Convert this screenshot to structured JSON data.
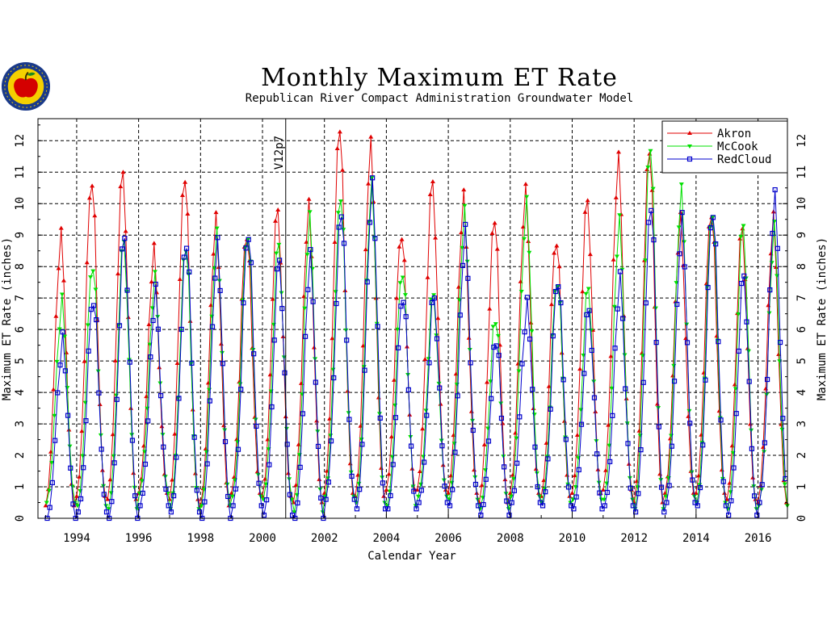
{
  "chart_data": {
    "type": "line",
    "title": "Monthly Maximum ET Rate",
    "subtitle": "Republican River Compact Administration Groundwater Model",
    "xlabel": "Calendar Year",
    "ylabel": "Maximum ET Rate (inches)",
    "xlim": [
      1992.75,
      2016.95
    ],
    "ylim": [
      0,
      12.7
    ],
    "x_ticks": [
      1994,
      1996,
      1998,
      2000,
      2002,
      2004,
      2006,
      2008,
      2010,
      2012,
      2014,
      2016
    ],
    "x_tick_labels": [
      "1994",
      "1996",
      "1998",
      "2000",
      "2002",
      "2004",
      "2006",
      "2008",
      "2010",
      "2012",
      "2014",
      "2016"
    ],
    "y_ticks": [
      0,
      1,
      2,
      3,
      4,
      5,
      6,
      7,
      8,
      9,
      10,
      11,
      12
    ],
    "y_tick_labels": [
      "0",
      "1",
      "2",
      "3",
      "4",
      "5",
      "6",
      "7",
      "8",
      "9",
      "10",
      "11",
      "12"
    ],
    "grid": true,
    "legend_position": "top-right",
    "annotation": {
      "text": "V12p7",
      "x": 2000.75
    },
    "series": [
      {
        "name": "Akron",
        "color": "#e00000",
        "marker": "triangle-up",
        "peaks": [
          9.0,
          11.0,
          11.0,
          8.3,
          10.9,
          9.5,
          9.3,
          9.8,
          9.7,
          12.5,
          11.9,
          9.3,
          10.7,
          10.0,
          9.6,
          10.4,
          9.1,
          10.1,
          11.2,
          11.8,
          9.5,
          10.0,
          9.2,
          9.3
        ],
        "lows": [
          0.4,
          0.7,
          0.6,
          0.8,
          0.6,
          0.4,
          0.8,
          0.7,
          0.5,
          0.8,
          0.7,
          0.9,
          0.9,
          0.8,
          0.5,
          0.8,
          0.7,
          0.8,
          0.9,
          0.5,
          0.8,
          0.8,
          0.6,
          0.5
        ]
      },
      {
        "name": "McCook",
        "color": "#00e000",
        "marker": "triangle-down",
        "peaks": [
          6.9,
          8.3,
          8.8,
          7.4,
          8.7,
          9.0,
          9.3,
          8.7,
          9.3,
          10.3,
          10.6,
          8.1,
          7.1,
          9.5,
          6.4,
          10.0,
          7.8,
          7.3,
          9.2,
          11.9,
          10.4,
          10.0,
          9.3,
          9.0
        ],
        "lows": [
          0.5,
          0.4,
          0.3,
          0.8,
          0.3,
          0.4,
          0.7,
          0.6,
          0.2,
          0.7,
          0.5,
          0.4,
          0.7,
          0.6,
          0.3,
          0.7,
          0.5,
          0.6,
          0.6,
          0.3,
          0.7,
          0.5,
          0.3,
          0.4
        ]
      },
      {
        "name": "RedCloud",
        "color": "#0000cc",
        "marker": "square",
        "peaks": [
          5.7,
          7.2,
          8.9,
          7.0,
          8.8,
          8.7,
          9.3,
          8.2,
          8.1,
          9.8,
          10.6,
          7.3,
          7.0,
          8.9,
          5.7,
          6.8,
          7.8,
          6.6,
          7.4,
          10.0,
          9.5,
          10.0,
          7.7,
          10.0
        ],
        "lows": [
          0.0,
          0.2,
          0.0,
          0.4,
          0.2,
          0.0,
          0.4,
          0.1,
          0.0,
          0.6,
          0.3,
          0.3,
          0.5,
          0.4,
          0.1,
          0.5,
          0.4,
          0.3,
          0.4,
          0.2,
          0.5,
          0.4,
          0.1,
          0.5
        ]
      }
    ]
  },
  "logo": {
    "name": "rrca-logo"
  }
}
